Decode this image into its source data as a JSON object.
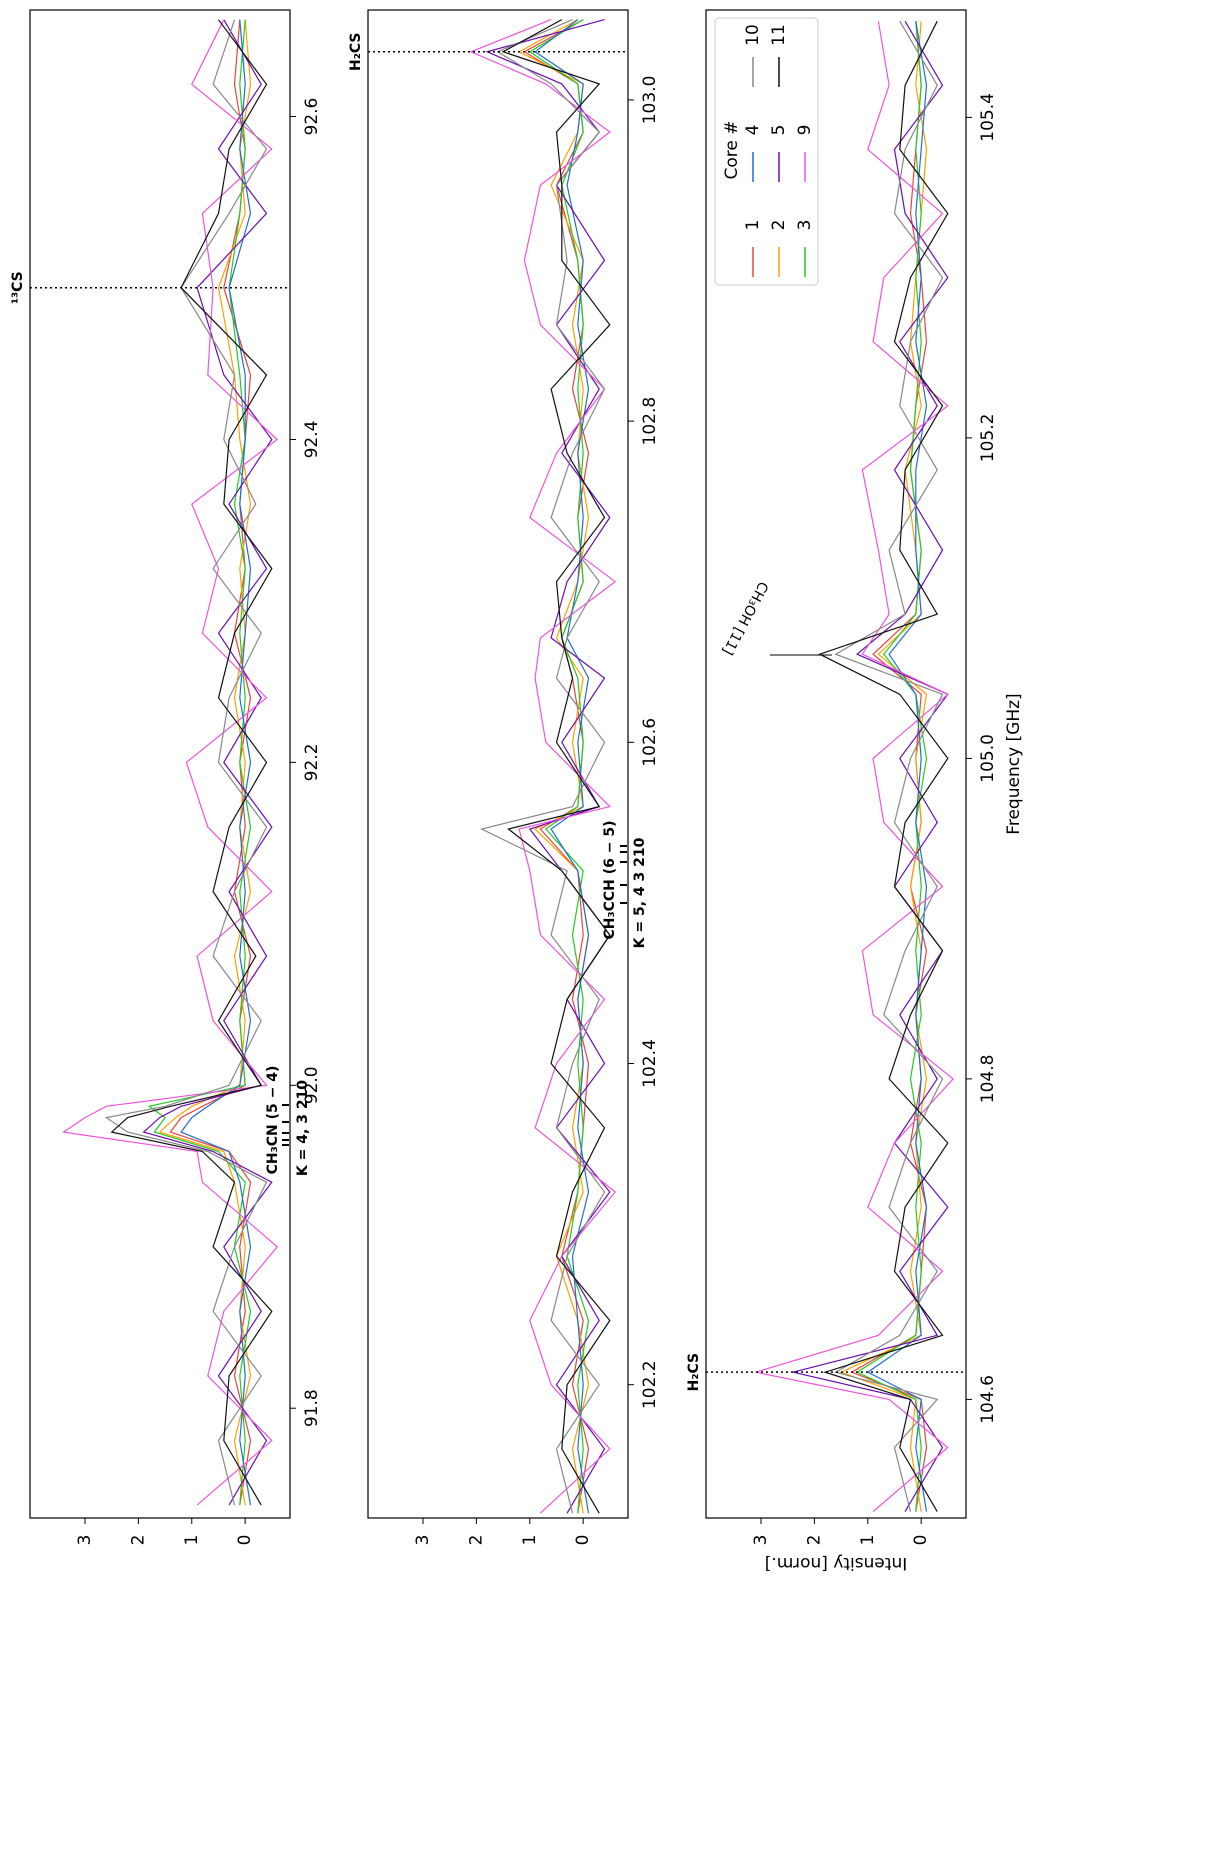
{
  "chart_data": [
    {
      "type": "line",
      "x": [
        91.74,
        91.78,
        91.82,
        91.86,
        91.9,
        91.94,
        91.959,
        91.971,
        91.98,
        91.987,
        92.0,
        92.04,
        92.08,
        92.12,
        92.16,
        92.2,
        92.24,
        92.28,
        92.32,
        92.36,
        92.4,
        92.44,
        92.494,
        92.54,
        92.58,
        92.62,
        92.66
      ],
      "series": [
        {
          "name": "1",
          "color": "#e8453c",
          "values": [
            0.1,
            -0.1,
            0.2,
            0.0,
            0.1,
            -0.1,
            0.3,
            1.4,
            1.2,
            0.8,
            0.0,
            0.1,
            -0.1,
            0.2,
            0.0,
            0.1,
            -0.1,
            0.2,
            0.0,
            0.1,
            0.0,
            -0.1,
            0.4,
            0.1,
            0.0,
            0.2,
            0.1
          ]
        },
        {
          "name": "2",
          "color": "#ffa000",
          "values": [
            0.0,
            0.2,
            -0.1,
            0.1,
            0.0,
            0.2,
            0.4,
            1.6,
            1.3,
            1.0,
            0.1,
            0.0,
            0.2,
            -0.1,
            0.1,
            0.0,
            0.2,
            0.0,
            0.1,
            -0.1,
            0.1,
            0.2,
            0.5,
            0.0,
            0.1,
            -0.1,
            0.0
          ]
        },
        {
          "name": "3",
          "color": "#22cc22",
          "values": [
            0.1,
            0.0,
            0.1,
            -0.1,
            0.2,
            0.0,
            0.5,
            1.7,
            1.5,
            1.8,
            0.0,
            0.1,
            0.0,
            0.1,
            -0.1,
            0.1,
            0.0,
            0.1,
            0.0,
            0.2,
            0.0,
            0.1,
            0.3,
            0.1,
            0.0,
            0.1,
            0.0
          ]
        },
        {
          "name": "4",
          "color": "#1f6fd0",
          "values": [
            -0.1,
            0.1,
            0.0,
            0.1,
            -0.1,
            0.1,
            0.3,
            1.2,
            1.0,
            0.7,
            0.1,
            -0.1,
            0.1,
            0.0,
            0.1,
            -0.1,
            0.1,
            0.0,
            -0.1,
            0.1,
            0.0,
            0.0,
            0.3,
            -0.1,
            0.1,
            0.0,
            0.1
          ]
        },
        {
          "name": "5",
          "color": "#6a0dad",
          "values": [
            0.3,
            -0.4,
            0.5,
            -0.3,
            0.4,
            -0.5,
            0.6,
            1.9,
            1.6,
            1.2,
            -0.3,
            0.4,
            -0.4,
            0.3,
            -0.5,
            0.4,
            -0.3,
            0.5,
            -0.4,
            0.3,
            -0.5,
            0.4,
            0.9,
            -0.4,
            0.5,
            -0.3,
            0.4
          ]
        },
        {
          "name": "9",
          "color": "#ee55dd",
          "values": [
            0.9,
            -0.5,
            0.7,
            0.4,
            -0.6,
            0.8,
            0.9,
            3.4,
            3.0,
            2.6,
            -0.4,
            0.6,
            0.9,
            -0.5,
            0.7,
            1.1,
            -0.4,
            0.8,
            0.5,
            1.0,
            -0.6,
            0.7,
            0.6,
            0.8,
            -0.5,
            1.0,
            0.4
          ]
        },
        {
          "name": "10",
          "color": "#888888",
          "values": [
            0.2,
            0.5,
            -0.3,
            0.6,
            0.2,
            -0.4,
            0.7,
            2.2,
            2.6,
            1.5,
            0.3,
            -0.3,
            0.6,
            0.2,
            -0.4,
            0.5,
            0.3,
            -0.3,
            0.6,
            -0.2,
            0.4,
            0.2,
            1.2,
            0.3,
            -0.4,
            0.6,
            0.2
          ]
        },
        {
          "name": "11",
          "color": "#111111",
          "values": [
            -0.3,
            0.4,
            0.3,
            -0.5,
            0.6,
            0.2,
            0.8,
            2.5,
            2.2,
            1.4,
            -0.3,
            0.5,
            -0.2,
            0.6,
            0.3,
            -0.4,
            0.5,
            0.2,
            -0.5,
            0.4,
            0.3,
            -0.4,
            1.2,
            0.5,
            0.3,
            -0.4,
            0.5
          ]
        }
      ],
      "xlim": [
        91.732,
        92.666
      ],
      "xticks": [
        91.8,
        {
          "value": 92,
          "label": "92.0"
        },
        92.2,
        92.4,
        92.6
      ],
      "ylim": [
        -0.84,
        4.03
      ],
      "yticks": [
        0,
        1,
        2,
        3
      ],
      "lines": [
        {
          "label": "¹³CS",
          "x": 92.494
        }
      ],
      "annotations": [
        "CH₃CN (5 − 4)",
        "K = 4,  3 210"
      ]
    },
    {
      "type": "line",
      "x": [
        102.12,
        102.16,
        102.2,
        102.24,
        102.28,
        102.32,
        102.36,
        102.4,
        102.44,
        102.48,
        102.52,
        102.546,
        102.56,
        102.6,
        102.64,
        102.665,
        102.7,
        102.74,
        102.78,
        102.82,
        102.86,
        102.9,
        102.947,
        102.98,
        103.01,
        103.03,
        103.05
      ],
      "series": [
        {
          "name": "1",
          "color": "#e8453c",
          "values": [
            0.1,
            -0.1,
            0.2,
            0.0,
            0.4,
            0.1,
            0.0,
            -0.1,
            0.2,
            0.0,
            0.1,
            0.8,
            0.1,
            0.0,
            0.2,
            0.4,
            0.0,
            0.1,
            -0.1,
            0.2,
            0.0,
            0.1,
            0.5,
            0.0,
            0.1,
            1.1,
            0.0
          ]
        },
        {
          "name": "2",
          "color": "#ffa000",
          "values": [
            0.0,
            0.2,
            -0.1,
            0.1,
            0.5,
            0.0,
            0.2,
            0.0,
            0.1,
            -0.1,
            0.1,
            0.9,
            0.0,
            0.2,
            0.0,
            0.5,
            0.1,
            -0.1,
            0.1,
            0.0,
            0.2,
            0.0,
            0.6,
            0.1,
            0.0,
            1.2,
            0.1
          ]
        },
        {
          "name": "3",
          "color": "#22cc22",
          "values": [
            0.1,
            0.0,
            0.1,
            -0.1,
            0.3,
            0.1,
            0.0,
            0.1,
            0.0,
            0.2,
            0.0,
            0.7,
            0.1,
            0.0,
            0.1,
            0.4,
            0.0,
            0.1,
            0.0,
            0.1,
            0.0,
            0.1,
            0.4,
            0.0,
            0.1,
            1.0,
            0.0
          ]
        },
        {
          "name": "4",
          "color": "#1f6fd0",
          "values": [
            -0.1,
            0.1,
            0.0,
            0.1,
            0.2,
            -0.1,
            0.1,
            0.0,
            0.1,
            -0.1,
            0.1,
            0.6,
            0.0,
            0.1,
            -0.1,
            0.3,
            0.1,
            0.0,
            0.1,
            -0.1,
            0.1,
            0.0,
            0.3,
            0.1,
            0.0,
            0.9,
            0.1
          ]
        },
        {
          "name": "5",
          "color": "#6a0dad",
          "values": [
            0.3,
            -0.4,
            0.5,
            -0.3,
            0.4,
            -0.5,
            0.5,
            -0.4,
            0.3,
            -0.5,
            0.4,
            1.0,
            -0.3,
            0.4,
            -0.4,
            0.6,
            0.3,
            -0.5,
            0.4,
            -0.3,
            0.5,
            -0.4,
            0.5,
            -0.3,
            0.4,
            1.8,
            -0.4
          ]
        },
        {
          "name": "9",
          "color": "#ee55dd",
          "values": [
            0.8,
            -0.5,
            0.6,
            1.0,
            0.4,
            -0.6,
            0.9,
            0.5,
            -0.4,
            0.8,
            1.0,
            1.2,
            -0.5,
            0.7,
            0.9,
            0.8,
            -0.6,
            1.0,
            0.5,
            -0.4,
            0.8,
            1.1,
            0.8,
            -0.5,
            0.7,
            2.1,
            0.6
          ]
        },
        {
          "name": "10",
          "color": "#888888",
          "values": [
            0.2,
            0.5,
            -0.3,
            0.6,
            0.3,
            -0.4,
            0.5,
            0.2,
            -0.3,
            0.6,
            0.3,
            1.9,
            0.2,
            -0.4,
            0.5,
            0.3,
            -0.3,
            0.6,
            0.2,
            -0.4,
            0.5,
            0.3,
            0.5,
            -0.3,
            0.6,
            1.6,
            0.2
          ]
        },
        {
          "name": "11",
          "color": "#111111",
          "values": [
            -0.3,
            0.4,
            0.3,
            -0.5,
            0.5,
            0.2,
            -0.4,
            0.6,
            0.3,
            -0.5,
            0.4,
            1.4,
            -0.3,
            0.5,
            0.2,
            0.4,
            0.5,
            -0.4,
            0.3,
            0.6,
            -0.5,
            0.4,
            0.4,
            0.5,
            -0.3,
            1.5,
            0.4
          ]
        }
      ],
      "xlim": [
        102.117,
        103.056
      ],
      "xticks": [
        102.2,
        102.4,
        102.6,
        102.8,
        {
          "value": 103,
          "label": "103.0"
        }
      ],
      "ylim": [
        -0.84,
        4.03
      ],
      "yticks": [
        0,
        1,
        2,
        3
      ],
      "lines": [
        {
          "label": "H₂CS",
          "x": 103.03
        }
      ],
      "annotations": [
        "CH₃CCH (6 − 5)",
        "K = 5,   4   3 210"
      ]
    },
    {
      "type": "line",
      "x": [
        104.53,
        104.57,
        104.6,
        104.617,
        104.64,
        104.68,
        104.72,
        104.76,
        104.8,
        104.84,
        104.88,
        104.92,
        104.96,
        105.0,
        105.04,
        105.065,
        105.09,
        105.13,
        105.18,
        105.22,
        105.26,
        105.3,
        105.34,
        105.38,
        105.42,
        105.46
      ],
      "series": [
        {
          "name": "1",
          "color": "#e8453c",
          "values": [
            0.1,
            -0.1,
            0.0,
            1.3,
            0.1,
            0.0,
            -0.1,
            0.2,
            0.0,
            0.1,
            -0.1,
            0.2,
            0.0,
            0.1,
            0.0,
            0.9,
            0.1,
            0.0,
            0.2,
            0.1,
            -0.1,
            0.0,
            0.2,
            0.1,
            0.0,
            0.1
          ]
        },
        {
          "name": "2",
          "color": "#ffa000",
          "values": [
            0.0,
            0.2,
            0.1,
            1.5,
            0.0,
            0.2,
            0.0,
            0.1,
            -0.1,
            0.1,
            0.0,
            0.2,
            0.0,
            0.1,
            -0.1,
            0.8,
            0.0,
            0.1,
            0.3,
            0.0,
            0.2,
            0.1,
            0.0,
            -0.1,
            0.1,
            0.0
          ]
        },
        {
          "name": "3",
          "color": "#22cc22",
          "values": [
            0.1,
            0.0,
            0.1,
            1.2,
            0.1,
            0.0,
            0.1,
            0.0,
            0.2,
            0.0,
            0.1,
            0.0,
            0.1,
            -0.1,
            0.1,
            0.7,
            0.1,
            0.0,
            0.2,
            0.1,
            0.0,
            0.1,
            0.0,
            0.1,
            0.0,
            0.1
          ]
        },
        {
          "name": "4",
          "color": "#1f6fd0",
          "values": [
            -0.1,
            0.1,
            0.0,
            1.0,
            0.0,
            0.1,
            -0.1,
            0.1,
            0.0,
            0.1,
            0.0,
            -0.1,
            0.1,
            0.0,
            0.1,
            0.6,
            0.0,
            0.1,
            0.1,
            -0.1,
            0.1,
            0.0,
            0.1,
            0.0,
            -0.1,
            0.1
          ]
        },
        {
          "name": "5",
          "color": "#6a0dad",
          "values": [
            0.3,
            -0.4,
            0.2,
            2.4,
            -0.3,
            0.4,
            -0.5,
            0.5,
            -0.3,
            0.4,
            -0.4,
            0.5,
            -0.3,
            0.4,
            -0.5,
            1.2,
            0.3,
            -0.4,
            0.5,
            -0.3,
            0.4,
            -0.5,
            0.3,
            0.5,
            -0.4,
            0.3
          ]
        },
        {
          "name": "9",
          "color": "#ee55dd",
          "values": [
            0.9,
            -0.5,
            0.6,
            3.1,
            0.8,
            -0.4,
            1.0,
            0.5,
            -0.6,
            0.9,
            1.1,
            -0.4,
            0.7,
            0.9,
            -0.5,
            1.1,
            0.6,
            0.8,
            1.1,
            -0.5,
            0.9,
            0.7,
            -0.4,
            1.0,
            0.6,
            0.8
          ]
        },
        {
          "name": "10",
          "color": "#888888",
          "values": [
            0.2,
            0.5,
            -0.3,
            1.6,
            0.4,
            -0.3,
            0.6,
            0.2,
            -0.4,
            0.7,
            0.3,
            -0.3,
            0.5,
            0.2,
            -0.4,
            1.6,
            0.3,
            0.6,
            -0.3,
            0.4,
            0.2,
            -0.4,
            0.5,
            0.3,
            -0.3,
            0.4
          ]
        },
        {
          "name": "11",
          "color": "#111111",
          "values": [
            -0.3,
            0.4,
            0.2,
            1.8,
            -0.4,
            0.5,
            0.3,
            -0.5,
            0.6,
            0.2,
            -0.4,
            0.5,
            0.3,
            -0.5,
            0.4,
            1.9,
            -0.3,
            0.4,
            0.3,
            -0.4,
            0.5,
            0.2,
            -0.5,
            0.4,
            0.3,
            -0.3
          ]
        }
      ],
      "xlim": [
        104.526,
        105.467
      ],
      "xticks": [
        104.6,
        104.8,
        {
          "value": 105,
          "label": "105.0"
        },
        105.2,
        105.4
      ],
      "ylim": [
        -0.84,
        4.03
      ],
      "yticks": [
        0,
        1,
        2,
        3
      ],
      "lines": [
        {
          "label": "H₂CS",
          "x": 104.617
        }
      ],
      "annotations": [
        "CH₃OH [11]"
      ],
      "xlabel": "Frequency [GHz]",
      "ylabel": "Intensity [norm.]",
      "legend": "upper right",
      "legend_title": "Core #"
    }
  ]
}
